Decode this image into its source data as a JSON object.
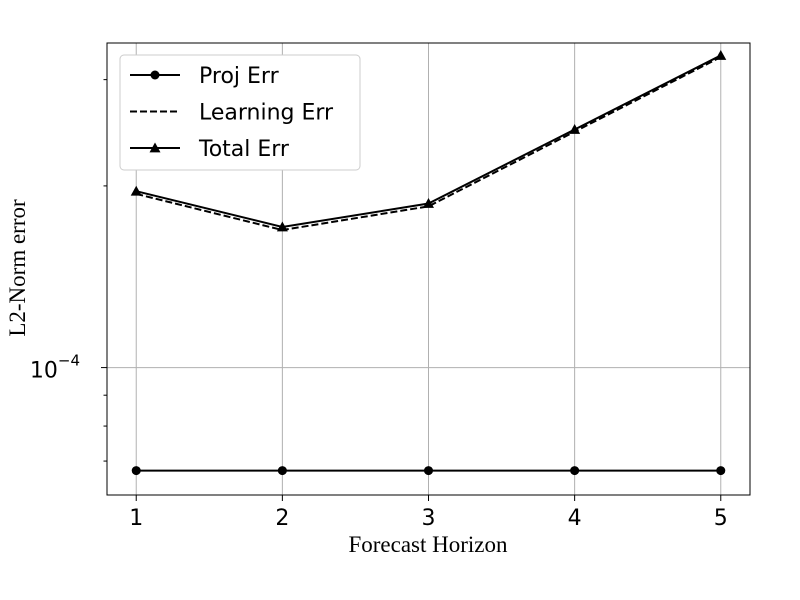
{
  "chart_data": {
    "type": "line",
    "x": [
      1,
      2,
      3,
      4,
      5
    ],
    "x_ticks": [
      "1",
      "2",
      "3",
      "4",
      "5"
    ],
    "xlim": [
      0.8,
      5.2
    ],
    "y_scale": "log",
    "ylim": [
      6.15e-05,
      0.000345
    ],
    "y_major_tick": {
      "value": 0.0001,
      "base": "10",
      "exponent": "−4"
    },
    "y_minor_ticks": [
      7e-05,
      8e-05,
      9e-05,
      0.0002,
      0.0003
    ],
    "xlabel": "Forecast Horizon",
    "ylabel": "L2-Norm error",
    "grid": true,
    "legend_placement": "top-left",
    "series": [
      {
        "name": "Proj Err",
        "values": [
          6.75e-05,
          6.75e-05,
          6.75e-05,
          6.75e-05,
          6.75e-05
        ],
        "linestyle": "solid",
        "marker": "circle"
      },
      {
        "name": "Learning Err",
        "values": [
          0.000194,
          0.000169,
          0.000185,
          0.000246,
          0.000327
        ],
        "linestyle": "dashed",
        "marker": "none"
      },
      {
        "name": "Total Err",
        "values": [
          0.000196,
          0.000171,
          0.000187,
          0.000248,
          0.000329
        ],
        "linestyle": "solid",
        "marker": "triangle"
      }
    ],
    "colors": {
      "line": "#000000",
      "grid": "#b0b0b0",
      "legend_border": "#cccccc"
    }
  }
}
